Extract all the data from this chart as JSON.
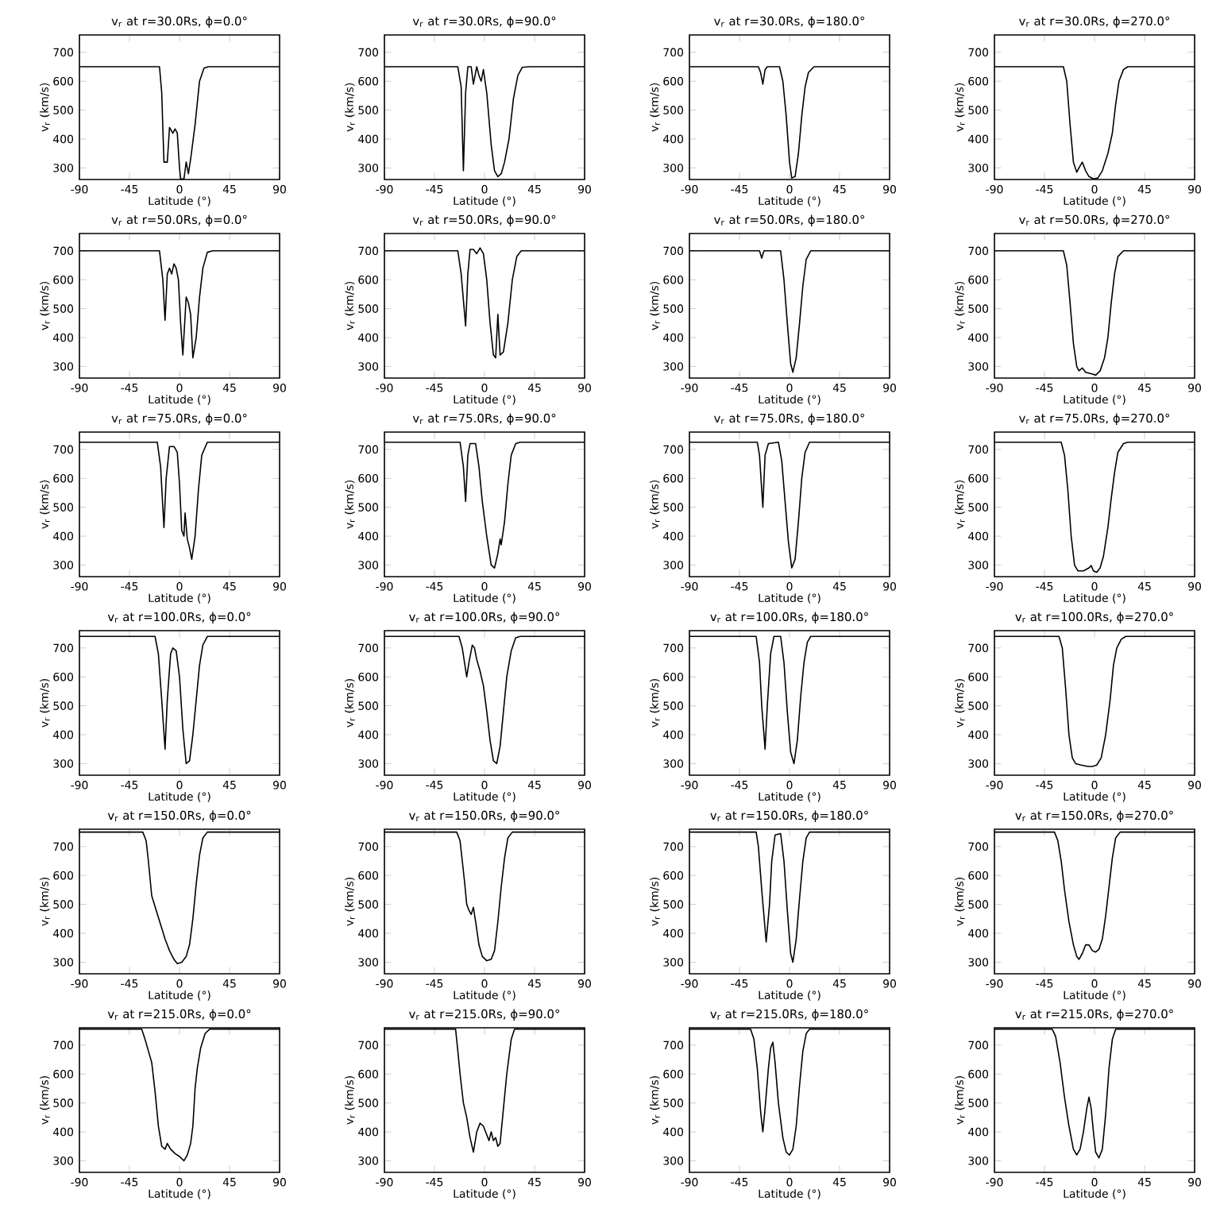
{
  "chart_data": [
    {
      "type": "line",
      "title": "v$_{r}$ at r=30.0Rs, ϕ=0.0°",
      "xlabel": "Latitude (°)",
      "ylabel": "v$_{r}$ (km/s)",
      "color": "#000000",
      "xlim": [
        -90,
        90
      ],
      "ylim": [
        260,
        760
      ],
      "xticks": [
        -90,
        -45,
        0,
        45,
        90
      ],
      "yticks": [
        300,
        400,
        500,
        600,
        700
      ],
      "x": [
        -90,
        -18,
        -16,
        -14,
        -11,
        -9,
        -6,
        -4,
        -2,
        0,
        1,
        4,
        6,
        8,
        10,
        14,
        18,
        22,
        26,
        90
      ],
      "values": [
        650,
        650,
        560,
        320,
        320,
        440,
        420,
        435,
        420,
        300,
        262,
        262,
        320,
        280,
        330,
        450,
        600,
        645,
        650,
        650
      ]
    },
    {
      "type": "line",
      "title": "v$_{r}$ at r=30.0Rs, ϕ=90.0°",
      "xlabel": "Latitude (°)",
      "ylabel": "v$_{r}$ (km/s)",
      "color": "#000000",
      "xlim": [
        -90,
        90
      ],
      "ylim": [
        260,
        760
      ],
      "xticks": [
        -90,
        -45,
        0,
        45,
        90
      ],
      "yticks": [
        300,
        400,
        500,
        600,
        700
      ],
      "x": [
        -90,
        -24,
        -21,
        -19,
        -17,
        -15,
        -12,
        -10,
        -7,
        -5,
        -3,
        -1,
        2,
        6,
        9,
        12,
        15,
        18,
        22,
        26,
        30,
        34,
        40,
        90
      ],
      "values": [
        650,
        650,
        580,
        290,
        560,
        650,
        650,
        590,
        650,
        620,
        600,
        640,
        560,
        380,
        290,
        270,
        280,
        320,
        400,
        540,
        620,
        648,
        650,
        650
      ]
    },
    {
      "type": "line",
      "title": "v$_{r}$ at r=30.0Rs, ϕ=180.0°",
      "xlabel": "Latitude (°)",
      "ylabel": "v$_{r}$ (km/s)",
      "color": "#000000",
      "xlim": [
        -90,
        90
      ],
      "ylim": [
        260,
        760
      ],
      "xticks": [
        -90,
        -45,
        0,
        45,
        90
      ],
      "yticks": [
        300,
        400,
        500,
        600,
        700
      ],
      "x": [
        -90,
        -28,
        -26,
        -24,
        -22,
        -20,
        -9,
        -6,
        -3,
        0,
        2,
        5,
        8,
        11,
        14,
        17,
        22,
        90
      ],
      "values": [
        650,
        650,
        630,
        590,
        640,
        650,
        650,
        600,
        480,
        320,
        265,
        270,
        350,
        480,
        580,
        630,
        650,
        650
      ]
    },
    {
      "type": "line",
      "title": "v$_{r}$ at r=30.0Rs, ϕ=270.0°",
      "xlabel": "Latitude (°)",
      "ylabel": "v$_{r}$ (km/s)",
      "color": "#000000",
      "xlim": [
        -90,
        90
      ],
      "ylim": [
        260,
        760
      ],
      "xticks": [
        -90,
        -45,
        0,
        45,
        90
      ],
      "yticks": [
        300,
        400,
        500,
        600,
        700
      ],
      "x": [
        -90,
        -28,
        -25,
        -22,
        -19,
        -16,
        -14,
        -11,
        -8,
        -5,
        -1,
        3,
        7,
        12,
        16,
        19,
        22,
        26,
        30,
        90
      ],
      "values": [
        650,
        650,
        600,
        450,
        320,
        285,
        300,
        320,
        290,
        270,
        262,
        265,
        290,
        350,
        420,
        520,
        600,
        640,
        650,
        650
      ]
    },
    {
      "type": "line",
      "title": "v$_{r}$ at r=50.0Rs, ϕ=0.0°",
      "xlabel": "Latitude (°)",
      "ylabel": "v$_{r}$ (km/s)",
      "color": "#000000",
      "xlim": [
        -90,
        90
      ],
      "ylim": [
        260,
        760
      ],
      "xticks": [
        -90,
        -45,
        0,
        45,
        90
      ],
      "yticks": [
        300,
        400,
        500,
        600,
        700
      ],
      "x": [
        -90,
        -18,
        -15,
        -13,
        -11,
        -9,
        -7,
        -5,
        -3,
        -1,
        1,
        3,
        6,
        8,
        10,
        12,
        15,
        18,
        21,
        25,
        30,
        90
      ],
      "values": [
        700,
        700,
        600,
        460,
        620,
        640,
        620,
        655,
        640,
        600,
        450,
        340,
        540,
        520,
        480,
        330,
        400,
        540,
        640,
        695,
        700,
        700
      ]
    },
    {
      "type": "line",
      "title": "v$_{r}$ at r=50.0Rs, ϕ=90.0°",
      "xlabel": "Latitude (°)",
      "ylabel": "v$_{r}$ (km/s)",
      "color": "#000000",
      "xlim": [
        -90,
        90
      ],
      "ylim": [
        260,
        760
      ],
      "xticks": [
        -90,
        -45,
        0,
        45,
        90
      ],
      "yticks": [
        300,
        400,
        500,
        600,
        700
      ],
      "x": [
        -90,
        -24,
        -21,
        -17,
        -15,
        -13,
        -10,
        -7,
        -4,
        -1,
        2,
        5,
        8,
        10,
        12,
        14,
        17,
        21,
        25,
        29,
        33,
        90
      ],
      "values": [
        700,
        700,
        620,
        440,
        620,
        705,
        705,
        690,
        710,
        690,
        600,
        450,
        340,
        330,
        480,
        340,
        350,
        450,
        600,
        680,
        700,
        700
      ]
    },
    {
      "type": "line",
      "title": "v$_{r}$ at r=50.0Rs, ϕ=180.0°",
      "xlabel": "Latitude (°)",
      "ylabel": "v$_{r}$ (km/s)",
      "color": "#000000",
      "xlim": [
        -90,
        90
      ],
      "ylim": [
        260,
        760
      ],
      "xticks": [
        -90,
        -45,
        0,
        45,
        90
      ],
      "yticks": [
        300,
        400,
        500,
        600,
        700
      ],
      "x": [
        -90,
        -27,
        -25,
        -23,
        -8,
        -5,
        -2,
        1,
        3,
        6,
        9,
        12,
        15,
        19,
        90
      ],
      "values": [
        700,
        700,
        675,
        700,
        700,
        600,
        450,
        310,
        280,
        330,
        450,
        580,
        670,
        700,
        700
      ]
    },
    {
      "type": "line",
      "title": "v$_{r}$ at r=50.0Rs, ϕ=270.0°",
      "xlabel": "Latitude (°)",
      "ylabel": "v$_{r}$ (km/s)",
      "color": "#000000",
      "xlim": [
        -90,
        90
      ],
      "ylim": [
        260,
        760
      ],
      "xticks": [
        -90,
        -45,
        0,
        45,
        90
      ],
      "yticks": [
        300,
        400,
        500,
        600,
        700
      ],
      "x": [
        -90,
        -28,
        -25,
        -22,
        -19,
        -16,
        -14,
        -11,
        -8,
        -3,
        1,
        5,
        9,
        12,
        15,
        18,
        21,
        26,
        90
      ],
      "values": [
        700,
        700,
        650,
        520,
        380,
        300,
        285,
        295,
        280,
        275,
        270,
        285,
        330,
        400,
        520,
        620,
        680,
        700,
        700
      ]
    },
    {
      "type": "line",
      "title": "v$_{r}$ at r=75.0Rs, ϕ=0.0°",
      "xlabel": "Latitude (°)",
      "ylabel": "v$_{r}$ (km/s)",
      "color": "#000000",
      "xlim": [
        -90,
        90
      ],
      "ylim": [
        260,
        760
      ],
      "xticks": [
        -90,
        -45,
        0,
        45,
        90
      ],
      "yticks": [
        300,
        400,
        500,
        600,
        700
      ],
      "x": [
        -90,
        -20,
        -17,
        -14,
        -12,
        -9,
        -5,
        -2,
        0,
        2,
        4,
        5,
        7,
        9,
        11,
        14,
        17,
        20,
        25,
        90
      ],
      "values": [
        725,
        725,
        640,
        430,
        600,
        710,
        710,
        690,
        580,
        420,
        400,
        480,
        390,
        360,
        320,
        400,
        560,
        680,
        725,
        725
      ]
    },
    {
      "type": "line",
      "title": "v$_{r}$ at r=75.0Rs, ϕ=90.0°",
      "xlabel": "Latitude (°)",
      "ylabel": "v$_{r}$ (km/s)",
      "color": "#000000",
      "xlim": [
        -90,
        90
      ],
      "ylim": [
        260,
        760
      ],
      "xticks": [
        -90,
        -45,
        0,
        45,
        90
      ],
      "yticks": [
        300,
        400,
        500,
        600,
        700
      ],
      "x": [
        -90,
        -22,
        -19,
        -17,
        -15,
        -13,
        -8,
        -5,
        -2,
        2,
        6,
        9,
        12,
        14,
        15,
        18,
        21,
        24,
        28,
        32,
        90
      ],
      "values": [
        725,
        725,
        640,
        520,
        680,
        720,
        720,
        640,
        520,
        400,
        300,
        290,
        340,
        390,
        370,
        450,
        580,
        680,
        720,
        725,
        725
      ]
    },
    {
      "type": "line",
      "title": "v$_{r}$ at r=75.0Rs, ϕ=180.0°",
      "xlabel": "Latitude (°)",
      "ylabel": "v$_{r}$ (km/s)",
      "color": "#000000",
      "xlim": [
        -90,
        90
      ],
      "ylim": [
        260,
        760
      ],
      "xticks": [
        -90,
        -45,
        0,
        45,
        90
      ],
      "yticks": [
        300,
        400,
        500,
        600,
        700
      ],
      "x": [
        -90,
        -29,
        -27,
        -24,
        -22,
        -19,
        -10,
        -7,
        -4,
        -1,
        2,
        5,
        8,
        11,
        14,
        18,
        90
      ],
      "values": [
        725,
        725,
        680,
        500,
        680,
        720,
        725,
        660,
        520,
        380,
        290,
        320,
        450,
        600,
        690,
        725,
        725
      ]
    },
    {
      "type": "line",
      "title": "v$_{r}$ at r=75.0Rs, ϕ=270.0°",
      "xlabel": "Latitude (°)",
      "ylabel": "v$_{r}$ (km/s)",
      "color": "#000000",
      "xlim": [
        -90,
        90
      ],
      "ylim": [
        260,
        760
      ],
      "xticks": [
        -90,
        -45,
        0,
        45,
        90
      ],
      "yticks": [
        300,
        400,
        500,
        600,
        700
      ],
      "x": [
        -90,
        -30,
        -27,
        -24,
        -21,
        -18,
        -15,
        -10,
        -5,
        -3,
        -1,
        2,
        5,
        8,
        12,
        15,
        18,
        21,
        26,
        30,
        90
      ],
      "values": [
        725,
        725,
        680,
        560,
        400,
        300,
        280,
        280,
        290,
        298,
        280,
        275,
        290,
        330,
        430,
        530,
        620,
        690,
        720,
        725,
        725
      ]
    },
    {
      "type": "line",
      "title": "v$_{r}$ at r=100.0Rs, ϕ=0.0°",
      "xlabel": "Latitude (°)",
      "ylabel": "v$_{r}$ (km/s)",
      "color": "#000000",
      "xlim": [
        -90,
        90
      ],
      "ylim": [
        260,
        760
      ],
      "xticks": [
        -90,
        -45,
        0,
        45,
        90
      ],
      "yticks": [
        300,
        400,
        500,
        600,
        700
      ],
      "x": [
        -90,
        -22,
        -19,
        -16,
        -13,
        -11,
        -8,
        -6,
        -3,
        0,
        3,
        6,
        9,
        12,
        15,
        18,
        21,
        25,
        90
      ],
      "values": [
        740,
        740,
        680,
        520,
        350,
        520,
        680,
        700,
        690,
        600,
        420,
        300,
        310,
        400,
        520,
        640,
        710,
        740,
        740
      ]
    },
    {
      "type": "line",
      "title": "v$_{r}$ at r=100.0Rs, ϕ=90.0°",
      "xlabel": "Latitude (°)",
      "ylabel": "v$_{r}$ (km/s)",
      "color": "#000000",
      "xlim": [
        -90,
        90
      ],
      "ylim": [
        260,
        760
      ],
      "xticks": [
        -90,
        -45,
        0,
        45,
        90
      ],
      "yticks": [
        300,
        400,
        500,
        600,
        700
      ],
      "x": [
        -90,
        -23,
        -20,
        -18,
        -16,
        -14,
        -11,
        -9,
        -7,
        -4,
        -1,
        2,
        5,
        8,
        11,
        14,
        17,
        20,
        24,
        28,
        32,
        90
      ],
      "values": [
        740,
        740,
        700,
        650,
        600,
        650,
        710,
        700,
        660,
        620,
        570,
        480,
        380,
        310,
        300,
        360,
        480,
        600,
        690,
        735,
        740,
        740
      ]
    },
    {
      "type": "line",
      "title": "v$_{r}$ at r=100.0Rs, ϕ=180.0°",
      "xlabel": "Latitude (°)",
      "ylabel": "v$_{r}$ (km/s)",
      "color": "#000000",
      "xlim": [
        -90,
        90
      ],
      "ylim": [
        260,
        760
      ],
      "xticks": [
        -90,
        -45,
        0,
        45,
        90
      ],
      "yticks": [
        300,
        400,
        500,
        600,
        700
      ],
      "x": [
        -90,
        -30,
        -27,
        -25,
        -22,
        -20,
        -17,
        -14,
        -8,
        -5,
        -2,
        1,
        4,
        7,
        10,
        13,
        16,
        19,
        90
      ],
      "values": [
        740,
        740,
        650,
        500,
        350,
        500,
        680,
        740,
        740,
        650,
        480,
        340,
        300,
        380,
        530,
        650,
        720,
        740,
        740
      ]
    },
    {
      "type": "line",
      "title": "v$_{r}$ at r=100.0Rs, ϕ=270.0°",
      "xlabel": "Latitude (°)",
      "ylabel": "v$_{r}$ (km/s)",
      "color": "#000000",
      "xlim": [
        -90,
        90
      ],
      "ylim": [
        260,
        760
      ],
      "xticks": [
        -90,
        -45,
        0,
        45,
        90
      ],
      "yticks": [
        300,
        400,
        500,
        600,
        700
      ],
      "x": [
        -90,
        -32,
        -29,
        -26,
        -23,
        -20,
        -17,
        -12,
        -6,
        -2,
        2,
        6,
        10,
        14,
        17,
        20,
        24,
        28,
        90
      ],
      "values": [
        740,
        740,
        700,
        560,
        400,
        320,
        300,
        295,
        290,
        290,
        295,
        320,
        400,
        520,
        640,
        700,
        730,
        740,
        740
      ]
    },
    {
      "type": "line",
      "title": "v$_{r}$ at r=150.0Rs, ϕ=0.0°",
      "xlabel": "Latitude (°)",
      "ylabel": "v$_{r}$ (km/s)",
      "color": "#000000",
      "xlim": [
        -90,
        90
      ],
      "ylim": [
        260,
        760
      ],
      "xticks": [
        -90,
        -45,
        0,
        45,
        90
      ],
      "yticks": [
        300,
        400,
        500,
        600,
        700
      ],
      "x": [
        -90,
        -33,
        -30,
        -28,
        -25,
        -21,
        -17,
        -13,
        -9,
        -5,
        -2,
        2,
        6,
        9,
        12,
        15,
        18,
        21,
        25,
        90
      ],
      "values": [
        750,
        750,
        720,
        650,
        530,
        480,
        430,
        380,
        340,
        310,
        295,
        300,
        320,
        360,
        450,
        570,
        670,
        730,
        750,
        750
      ]
    },
    {
      "type": "line",
      "title": "v$_{r}$ at r=150.0Rs, ϕ=90.0°",
      "xlabel": "Latitude (°)",
      "ylabel": "v$_{r}$ (km/s)",
      "color": "#000000",
      "xlim": [
        -90,
        90
      ],
      "ylim": [
        260,
        760
      ],
      "xticks": [
        -90,
        -45,
        0,
        45,
        90
      ],
      "yticks": [
        300,
        400,
        500,
        600,
        700
      ],
      "x": [
        -90,
        -25,
        -22,
        -20,
        -18,
        -16,
        -14,
        -12,
        -10,
        -8,
        -5,
        -2,
        2,
        6,
        9,
        12,
        15,
        18,
        21,
        25,
        90
      ],
      "values": [
        750,
        750,
        720,
        650,
        580,
        500,
        480,
        465,
        490,
        440,
        360,
        320,
        305,
        310,
        340,
        440,
        560,
        660,
        730,
        750,
        750
      ]
    },
    {
      "type": "line",
      "title": "v$_{r}$ at r=150.0Rs, ϕ=180.0°",
      "xlabel": "Latitude (°)",
      "ylabel": "v$_{r}$ (km/s)",
      "color": "#000000",
      "xlim": [
        -90,
        90
      ],
      "ylim": [
        260,
        760
      ],
      "xticks": [
        -90,
        -45,
        0,
        45,
        90
      ],
      "yticks": [
        300,
        400,
        500,
        600,
        700
      ],
      "x": [
        -90,
        -30,
        -28,
        -25,
        -21,
        -18,
        -16,
        -13,
        -8,
        -5,
        -2,
        1,
        3,
        6,
        9,
        12,
        15,
        18,
        90
      ],
      "values": [
        750,
        750,
        700,
        550,
        370,
        500,
        650,
        740,
        745,
        650,
        480,
        330,
        300,
        380,
        520,
        650,
        730,
        750,
        750
      ]
    },
    {
      "type": "line",
      "title": "v$_{r}$ at r=150.0Rs, ϕ=270.0°",
      "xlabel": "Latitude (°)",
      "ylabel": "v$_{r}$ (km/s)",
      "color": "#000000",
      "xlim": [
        -90,
        90
      ],
      "ylim": [
        260,
        760
      ],
      "xticks": [
        -90,
        -45,
        0,
        45,
        90
      ],
      "yticks": [
        300,
        400,
        500,
        600,
        700
      ],
      "x": [
        -90,
        -36,
        -33,
        -30,
        -27,
        -23,
        -19,
        -16,
        -14,
        -11,
        -8,
        -5,
        -2,
        1,
        4,
        7,
        10,
        13,
        16,
        19,
        23,
        90
      ],
      "values": [
        750,
        750,
        720,
        650,
        550,
        440,
        360,
        320,
        310,
        330,
        360,
        360,
        340,
        335,
        345,
        380,
        460,
        560,
        660,
        730,
        750,
        750
      ]
    },
    {
      "type": "line",
      "title": "v$_{r}$ at r=215.0Rs, ϕ=0.0°",
      "xlabel": "Latitude (°)",
      "ylabel": "v$_{r}$ (km/s)",
      "color": "#000000",
      "xlim": [
        -90,
        90
      ],
      "ylim": [
        260,
        760
      ],
      "xticks": [
        -90,
        -45,
        0,
        45,
        90
      ],
      "yticks": [
        300,
        400,
        500,
        600,
        700
      ],
      "x": [
        -90,
        -34,
        -31,
        -28,
        -25,
        -22,
        -19,
        -16,
        -13,
        -11,
        -8,
        -4,
        0,
        4,
        7,
        10,
        12,
        14,
        16,
        19,
        23,
        27,
        90
      ],
      "values": [
        755,
        755,
        720,
        680,
        640,
        540,
        420,
        350,
        340,
        360,
        340,
        325,
        315,
        300,
        320,
        360,
        420,
        550,
        620,
        690,
        740,
        755,
        755
      ]
    },
    {
      "type": "line",
      "title": "v$_{r}$ at r=215.0Rs, ϕ=90.0°",
      "xlabel": "Latitude (°)",
      "ylabel": "v$_{r}$ (km/s)",
      "color": "#000000",
      "xlim": [
        -90,
        90
      ],
      "ylim": [
        260,
        760
      ],
      "xticks": [
        -90,
        -45,
        0,
        45,
        90
      ],
      "yticks": [
        300,
        400,
        500,
        600,
        700
      ],
      "x": [
        -90,
        -26,
        -24,
        -22,
        -19,
        -16,
        -13,
        -10,
        -7,
        -4,
        -1,
        2,
        4,
        6,
        8,
        10,
        12,
        14,
        17,
        20,
        24,
        27,
        90
      ],
      "values": [
        755,
        755,
        680,
        600,
        500,
        450,
        380,
        330,
        400,
        430,
        420,
        390,
        370,
        400,
        370,
        380,
        350,
        360,
        480,
        600,
        720,
        755,
        755
      ]
    },
    {
      "type": "line",
      "title": "v$_{r}$ at r=215.0Rs, ϕ=180.0°",
      "xlabel": "Latitude (°)",
      "ylabel": "v$_{r}$ (km/s)",
      "color": "#000000",
      "xlim": [
        -90,
        90
      ],
      "ylim": [
        260,
        760
      ],
      "xticks": [
        -90,
        -45,
        0,
        45,
        90
      ],
      "yticks": [
        300,
        400,
        500,
        600,
        700
      ],
      "x": [
        -90,
        -35,
        -32,
        -29,
        -26,
        -24,
        -22,
        -19,
        -17,
        -15,
        -13,
        -10,
        -6,
        -3,
        0,
        3,
        6,
        9,
        12,
        15,
        18,
        90
      ],
      "values": [
        755,
        755,
        720,
        620,
        470,
        400,
        480,
        620,
        690,
        710,
        640,
        500,
        380,
        330,
        320,
        340,
        420,
        560,
        680,
        740,
        755,
        755
      ]
    },
    {
      "type": "line",
      "title": "v$_{r}$ at r=215.0Rs, ϕ=270.0°",
      "xlabel": "Latitude (°)",
      "ylabel": "v$_{r}$ (km/s)",
      "color": "#000000",
      "xlim": [
        -90,
        90
      ],
      "ylim": [
        260,
        760
      ],
      "xticks": [
        -90,
        -45,
        0,
        45,
        90
      ],
      "yticks": [
        300,
        400,
        500,
        600,
        700
      ],
      "x": [
        -90,
        -38,
        -35,
        -31,
        -27,
        -23,
        -19,
        -16,
        -13,
        -10,
        -7,
        -5,
        -3,
        -1,
        1,
        4,
        7,
        10,
        13,
        16,
        19,
        90
      ],
      "values": [
        755,
        755,
        730,
        640,
        520,
        420,
        340,
        320,
        340,
        400,
        480,
        520,
        480,
        400,
        330,
        310,
        340,
        460,
        620,
        720,
        755,
        755
      ]
    }
  ]
}
